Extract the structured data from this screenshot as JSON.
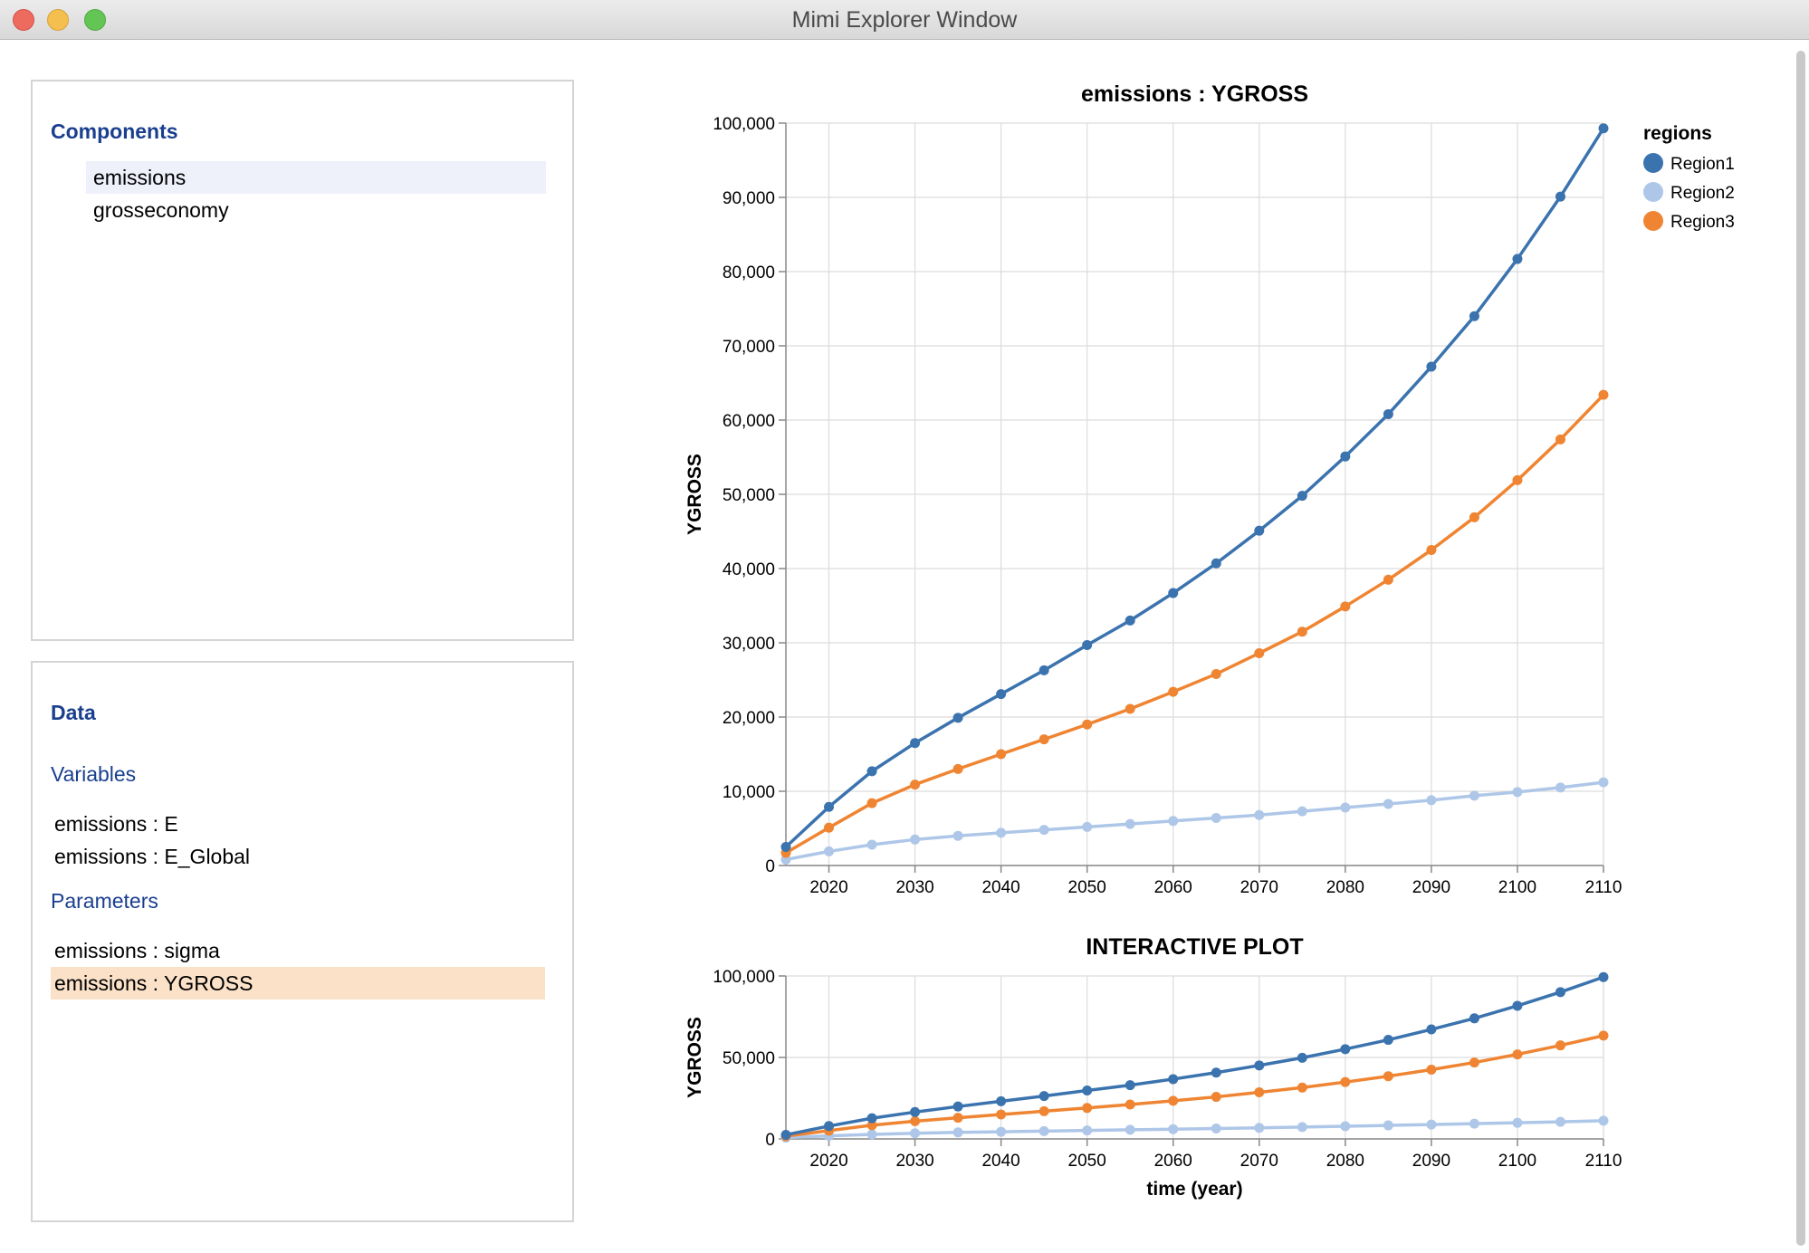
{
  "window": {
    "title": "Mimi Explorer Window"
  },
  "components": {
    "heading": "Components",
    "items": [
      {
        "label": "emissions",
        "selected": true
      },
      {
        "label": "grosseconomy",
        "selected": false
      }
    ]
  },
  "data_panel": {
    "heading": "Data",
    "variables_heading": "Variables",
    "variables": [
      "emissions : E",
      "emissions : E_Global"
    ],
    "parameters_heading": "Parameters",
    "parameters": [
      {
        "label": "emissions : sigma",
        "selected": false
      },
      {
        "label": "emissions : YGROSS",
        "selected": true
      }
    ]
  },
  "legend": {
    "title": "regions",
    "entries": [
      "Region1",
      "Region2",
      "Region3"
    ]
  },
  "colors": {
    "Region1": "#3b73ae",
    "Region2": "#aec7e8",
    "Region3": "#ef8532",
    "accent": "#1a3f8f"
  },
  "chart_data": [
    {
      "type": "line",
      "title": "emissions : YGROSS",
      "xlabel": "",
      "ylabel": "YGROSS",
      "xlim": [
        2015,
        2110
      ],
      "ylim": [
        0,
        100000
      ],
      "x_ticks": [
        2020,
        2030,
        2040,
        2050,
        2060,
        2070,
        2080,
        2090,
        2100,
        2110
      ],
      "y_ticks": [
        0,
        10000,
        20000,
        30000,
        40000,
        50000,
        60000,
        70000,
        80000,
        90000,
        100000
      ],
      "x_tick_labels": [
        "2020",
        "2030",
        "2040",
        "2050",
        "2060",
        "2070",
        "2080",
        "2090",
        "2100",
        "2110"
      ],
      "y_tick_labels": [
        "0",
        "10,000",
        "20,000",
        "30,000",
        "40,000",
        "50,000",
        "60,000",
        "70,000",
        "80,000",
        "90,000",
        "100,000"
      ],
      "grid": true,
      "legend_position": "top-right",
      "x": [
        2015,
        2020,
        2025,
        2030,
        2035,
        2040,
        2045,
        2050,
        2055,
        2060,
        2065,
        2070,
        2075,
        2080,
        2085,
        2090,
        2095,
        2100,
        2105,
        2110
      ],
      "series": [
        {
          "name": "Region1",
          "values": [
            2500,
            7900,
            12700,
            16500,
            19900,
            23100,
            26300,
            29700,
            33000,
            36700,
            40700,
            45100,
            49800,
            55100,
            60800,
            67200,
            74000,
            81700,
            90100,
            99300
          ]
        },
        {
          "name": "Region2",
          "values": [
            800,
            1900,
            2800,
            3500,
            4000,
            4400,
            4800,
            5200,
            5600,
            6000,
            6400,
            6800,
            7300,
            7800,
            8300,
            8800,
            9400,
            9900,
            10500,
            11200
          ]
        },
        {
          "name": "Region3",
          "values": [
            1700,
            5100,
            8400,
            10900,
            13000,
            15000,
            17000,
            19000,
            21100,
            23400,
            25800,
            28600,
            31500,
            34900,
            38500,
            42500,
            46900,
            51900,
            57400,
            63400
          ]
        }
      ]
    },
    {
      "type": "line",
      "title": "INTERACTIVE PLOT",
      "xlabel": "time (year)",
      "ylabel": "YGROSS",
      "xlim": [
        2015,
        2110
      ],
      "ylim": [
        0,
        100000
      ],
      "x_ticks": [
        2020,
        2030,
        2040,
        2050,
        2060,
        2070,
        2080,
        2090,
        2100,
        2110
      ],
      "y_ticks": [
        0,
        50000,
        100000
      ],
      "x_tick_labels": [
        "2020",
        "2030",
        "2040",
        "2050",
        "2060",
        "2070",
        "2080",
        "2090",
        "2100",
        "2110"
      ],
      "y_tick_labels": [
        "0",
        "50,000",
        "100,000"
      ],
      "grid": true,
      "x": [
        2015,
        2020,
        2025,
        2030,
        2035,
        2040,
        2045,
        2050,
        2055,
        2060,
        2065,
        2070,
        2075,
        2080,
        2085,
        2090,
        2095,
        2100,
        2105,
        2110
      ],
      "series": [
        {
          "name": "Region1",
          "values": [
            2500,
            7900,
            12700,
            16500,
            19900,
            23100,
            26300,
            29700,
            33000,
            36700,
            40700,
            45100,
            49800,
            55100,
            60800,
            67200,
            74000,
            81700,
            90100,
            99300
          ]
        },
        {
          "name": "Region2",
          "values": [
            800,
            1900,
            2800,
            3500,
            4000,
            4400,
            4800,
            5200,
            5600,
            6000,
            6400,
            6800,
            7300,
            7800,
            8300,
            8800,
            9400,
            9900,
            10500,
            11200
          ]
        },
        {
          "name": "Region3",
          "values": [
            1700,
            5100,
            8400,
            10900,
            13000,
            15000,
            17000,
            19000,
            21100,
            23400,
            25800,
            28600,
            31500,
            34900,
            38500,
            42500,
            46900,
            51900,
            57400,
            63400
          ]
        }
      ]
    }
  ]
}
